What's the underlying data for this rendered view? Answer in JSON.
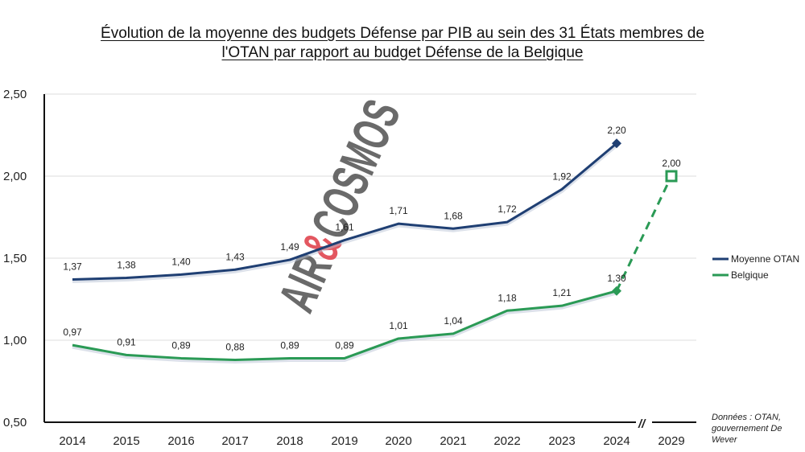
{
  "title_line1": "Évolution de la moyenne des budgets Défense par PIB au sein des 31 États membres de",
  "title_line2": "l'OTAN par rapport au budget Défense de la Belgique",
  "source_text": "Données : OTAN, gouvernement De Wever",
  "watermark": {
    "part1": "AIR",
    "amp": "&",
    "part2": "COSMOS"
  },
  "axis_break_mark": "//",
  "colors": {
    "otan": "#1f3f73",
    "belgique": "#2a9a55",
    "grid": "#dcdcdc",
    "watermark": "#5a5a5a",
    "watermark_amp": "#e0454f"
  },
  "chart_data": {
    "type": "line",
    "categories": [
      "2014",
      "2015",
      "2016",
      "2017",
      "2018",
      "2019",
      "2020",
      "2021",
      "2022",
      "2023",
      "2024",
      "2029"
    ],
    "y_ticks": [
      "0,50",
      "1,00",
      "1,50",
      "2,00",
      "2,50"
    ],
    "ylim": [
      0.5,
      2.5
    ],
    "grid": true,
    "legend_position": "right",
    "xlabel": "",
    "ylabel": "",
    "axis_break_between": [
      "2024",
      "2029"
    ],
    "series": [
      {
        "name": "Moyenne OTAN",
        "values": [
          1.37,
          1.38,
          1.4,
          1.43,
          1.49,
          1.61,
          1.71,
          1.68,
          1.72,
          1.92,
          2.2,
          null
        ],
        "labels": [
          "1,37",
          "1,38",
          "1,40",
          "1,43",
          "1,49",
          "1,61",
          "1,71",
          "1,68",
          "1,72",
          "1,92",
          "2,20",
          ""
        ],
        "marker_at": "2024"
      },
      {
        "name": "Belgique",
        "values": [
          0.97,
          0.91,
          0.89,
          0.88,
          0.89,
          0.89,
          1.01,
          1.04,
          1.18,
          1.21,
          1.3,
          2.0
        ],
        "labels": [
          "0,97",
          "0,91",
          "0,89",
          "0,88",
          "0,89",
          "0,89",
          "1,01",
          "1,04",
          "1,18",
          "1,21",
          "1,30",
          "2,00"
        ],
        "dashed_segment": [
          "2024",
          "2029"
        ],
        "marker_at": "2024"
      }
    ]
  }
}
